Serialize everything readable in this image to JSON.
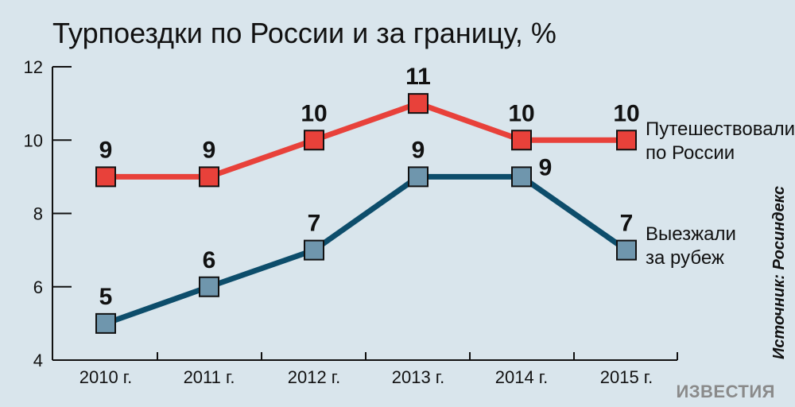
{
  "colors": {
    "background": "#d9e5ec",
    "russia": "#e8413a",
    "abroad_line": "#0d4d6b",
    "abroad_marker": "#6f96ad",
    "axis": "#111111"
  },
  "chart_data": {
    "type": "line",
    "title": "Турпоездки по России и за границу, %",
    "categories": [
      "2010 г.",
      "2011 г.",
      "2012 г.",
      "2013 г.",
      "2014 г.",
      "2015 г."
    ],
    "ylim": [
      4,
      12
    ],
    "yticks": [
      "4",
      "6",
      "8",
      "10",
      "12"
    ],
    "grid": false,
    "series": [
      {
        "name": "Путешествовали по России",
        "legend_lines": [
          "Путешествовали",
          "по России"
        ],
        "values": [
          9,
          9,
          10,
          11,
          10,
          10
        ],
        "labels": [
          "9",
          "9",
          "10",
          "11",
          "10",
          "10"
        ]
      },
      {
        "name": "Выезжали за рубеж",
        "legend_lines": [
          "Выезжали",
          "за рубеж"
        ],
        "values": [
          5,
          6,
          7,
          9,
          9,
          7
        ],
        "labels": [
          "5",
          "6",
          "7",
          "9",
          "9",
          "7"
        ]
      }
    ],
    "source": "Источник: Росиндекс"
  },
  "brand": {
    "logo_text": "ИЗВЕСТИЯ"
  }
}
